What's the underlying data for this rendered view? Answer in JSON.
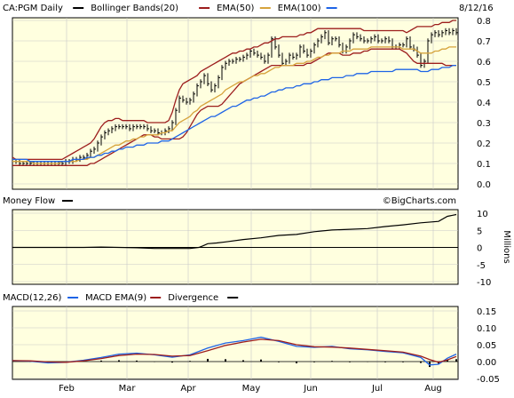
{
  "colors": {
    "panel_bg": "#ffffdf",
    "frame": "#000000",
    "grid": "#c8c8c8",
    "price": "#000000",
    "bollinger": "#9c1d1d",
    "ema50": "#d6a33c",
    "ema100": "#1e64e6",
    "money_flow": "#000000",
    "macd": "#1e64e6",
    "macd_ema": "#9c1d1d",
    "divergence": "#000000"
  },
  "chart_data": [
    {
      "type": "line",
      "name": "price",
      "legend": [
        {
          "label": "CA:PGM Daily",
          "swatch": "#000000"
        },
        {
          "label": "Bollinger Bands(20)",
          "swatch": "#9c1d1d"
        },
        {
          "label": "EMA(50)",
          "swatch": "#d6a33c"
        },
        {
          "label": "EMA(100)",
          "swatch": "#1e64e6"
        }
      ],
      "date_label": "8/12/16",
      "watermark": "©BigCharts.com",
      "yticks": [
        "0.8",
        "0.7",
        "0.6",
        "0.5",
        "0.4",
        "0.3",
        "0.2",
        "0.1",
        "0.0"
      ],
      "ylim": [
        0,
        0.8
      ],
      "x": [
        0,
        4,
        8,
        12,
        16,
        20,
        24,
        28,
        32,
        36,
        40,
        44,
        48,
        52,
        56,
        60,
        64,
        68,
        72,
        76,
        80,
        84,
        88,
        92,
        96,
        100,
        104,
        108,
        112,
        116,
        120,
        124,
        128,
        132,
        136,
        140,
        144,
        148,
        152,
        156,
        160,
        164,
        168,
        172,
        176,
        180,
        184,
        188,
        192,
        196,
        200,
        204,
        208,
        212,
        216,
        220,
        224,
        228,
        232,
        236,
        240,
        244,
        248,
        252,
        256,
        260,
        264,
        268,
        272,
        276,
        280,
        284,
        288,
        292,
        296,
        300,
        304,
        308,
        312,
        316,
        320,
        324,
        328,
        332,
        336,
        340,
        344,
        348,
        352,
        356,
        360,
        364,
        368,
        372,
        376,
        380,
        384,
        388,
        392,
        396,
        400,
        404,
        408,
        412,
        416,
        420,
        424,
        428,
        432,
        436,
        440,
        444,
        448,
        452,
        456,
        460,
        464,
        468,
        472,
        476,
        480,
        484,
        488,
        492,
        496,
        500
      ],
      "close": [
        0.11,
        0.11,
        0.1,
        0.1,
        0.1,
        0.1,
        0.1,
        0.1,
        0.1,
        0.1,
        0.1,
        0.1,
        0.1,
        0.1,
        0.1,
        0.11,
        0.11,
        0.12,
        0.12,
        0.13,
        0.13,
        0.14,
        0.16,
        0.17,
        0.2,
        0.23,
        0.25,
        0.26,
        0.27,
        0.28,
        0.28,
        0.28,
        0.28,
        0.27,
        0.28,
        0.28,
        0.28,
        0.28,
        0.27,
        0.26,
        0.26,
        0.25,
        0.25,
        0.26,
        0.27,
        0.3,
        0.36,
        0.42,
        0.41,
        0.4,
        0.41,
        0.44,
        0.48,
        0.5,
        0.53,
        0.49,
        0.46,
        0.48,
        0.52,
        0.57,
        0.59,
        0.6,
        0.6,
        0.61,
        0.61,
        0.62,
        0.63,
        0.65,
        0.64,
        0.63,
        0.62,
        0.6,
        0.63,
        0.71,
        0.67,
        0.63,
        0.59,
        0.6,
        0.63,
        0.62,
        0.63,
        0.67,
        0.65,
        0.63,
        0.65,
        0.68,
        0.7,
        0.72,
        0.74,
        0.69,
        0.71,
        0.71,
        0.68,
        0.65,
        0.67,
        0.7,
        0.73,
        0.72,
        0.71,
        0.7,
        0.7,
        0.71,
        0.72,
        0.7,
        0.7,
        0.71,
        0.7,
        0.67,
        0.67,
        0.68,
        0.68,
        0.71,
        0.67,
        0.66,
        0.63,
        0.58,
        0.6,
        0.7,
        0.73,
        0.74,
        0.73,
        0.74,
        0.75,
        0.74,
        0.75,
        0.74
      ],
      "bb_upper": [
        0.13,
        0.12,
        0.12,
        0.12,
        0.12,
        0.12,
        0.12,
        0.12,
        0.12,
        0.12,
        0.12,
        0.12,
        0.12,
        0.12,
        0.12,
        0.13,
        0.14,
        0.15,
        0.16,
        0.17,
        0.18,
        0.19,
        0.2,
        0.22,
        0.25,
        0.28,
        0.3,
        0.31,
        0.31,
        0.32,
        0.32,
        0.31,
        0.31,
        0.31,
        0.31,
        0.31,
        0.31,
        0.31,
        0.3,
        0.3,
        0.3,
        0.3,
        0.3,
        0.3,
        0.31,
        0.35,
        0.41,
        0.46,
        0.49,
        0.5,
        0.51,
        0.52,
        0.53,
        0.55,
        0.56,
        0.57,
        0.58,
        0.59,
        0.6,
        0.61,
        0.62,
        0.63,
        0.64,
        0.64,
        0.65,
        0.65,
        0.66,
        0.66,
        0.67,
        0.67,
        0.68,
        0.69,
        0.69,
        0.7,
        0.71,
        0.71,
        0.72,
        0.72,
        0.72,
        0.72,
        0.72,
        0.73,
        0.73,
        0.74,
        0.74,
        0.75,
        0.76,
        0.76,
        0.76,
        0.76,
        0.76,
        0.76,
        0.76,
        0.76,
        0.76,
        0.76,
        0.76,
        0.76,
        0.76,
        0.75,
        0.75,
        0.75,
        0.75,
        0.75,
        0.75,
        0.75,
        0.75,
        0.75,
        0.75,
        0.75,
        0.75,
        0.74,
        0.75,
        0.76,
        0.77,
        0.77,
        0.77,
        0.77,
        0.77,
        0.78,
        0.78,
        0.79,
        0.79,
        0.79,
        0.8,
        0.8
      ],
      "bb_lower": [
        0.09,
        0.09,
        0.09,
        0.09,
        0.09,
        0.09,
        0.09,
        0.09,
        0.09,
        0.09,
        0.09,
        0.09,
        0.09,
        0.09,
        0.09,
        0.09,
        0.09,
        0.09,
        0.09,
        0.09,
        0.09,
        0.09,
        0.1,
        0.1,
        0.11,
        0.12,
        0.13,
        0.14,
        0.15,
        0.16,
        0.17,
        0.18,
        0.19,
        0.2,
        0.21,
        0.22,
        0.23,
        0.24,
        0.24,
        0.24,
        0.23,
        0.23,
        0.22,
        0.22,
        0.22,
        0.22,
        0.22,
        0.22,
        0.23,
        0.25,
        0.28,
        0.31,
        0.34,
        0.36,
        0.37,
        0.38,
        0.38,
        0.38,
        0.38,
        0.39,
        0.41,
        0.43,
        0.45,
        0.47,
        0.49,
        0.5,
        0.51,
        0.52,
        0.53,
        0.54,
        0.55,
        0.56,
        0.57,
        0.58,
        0.58,
        0.58,
        0.58,
        0.58,
        0.58,
        0.58,
        0.58,
        0.58,
        0.58,
        0.59,
        0.59,
        0.6,
        0.61,
        0.62,
        0.63,
        0.64,
        0.64,
        0.64,
        0.64,
        0.63,
        0.63,
        0.63,
        0.64,
        0.64,
        0.64,
        0.65,
        0.65,
        0.66,
        0.66,
        0.66,
        0.66,
        0.66,
        0.66,
        0.66,
        0.66,
        0.66,
        0.65,
        0.64,
        0.62,
        0.6,
        0.59,
        0.59,
        0.59,
        0.59,
        0.59,
        0.59,
        0.59,
        0.59,
        0.58,
        0.58,
        0.58,
        0.58
      ],
      "ema50": [
        0.11,
        0.11,
        0.11,
        0.11,
        0.11,
        0.11,
        0.1,
        0.1,
        0.1,
        0.1,
        0.1,
        0.1,
        0.1,
        0.1,
        0.11,
        0.11,
        0.11,
        0.11,
        0.11,
        0.12,
        0.12,
        0.12,
        0.13,
        0.13,
        0.14,
        0.15,
        0.16,
        0.17,
        0.18,
        0.19,
        0.19,
        0.2,
        0.21,
        0.21,
        0.22,
        0.22,
        0.23,
        0.23,
        0.24,
        0.24,
        0.24,
        0.24,
        0.25,
        0.25,
        0.26,
        0.26,
        0.28,
        0.3,
        0.31,
        0.32,
        0.33,
        0.35,
        0.36,
        0.38,
        0.39,
        0.4,
        0.41,
        0.42,
        0.43,
        0.44,
        0.46,
        0.47,
        0.48,
        0.49,
        0.5,
        0.5,
        0.51,
        0.52,
        0.53,
        0.53,
        0.54,
        0.54,
        0.55,
        0.56,
        0.57,
        0.57,
        0.58,
        0.58,
        0.58,
        0.58,
        0.59,
        0.59,
        0.59,
        0.6,
        0.6,
        0.61,
        0.62,
        0.62,
        0.63,
        0.63,
        0.64,
        0.64,
        0.64,
        0.65,
        0.65,
        0.65,
        0.66,
        0.66,
        0.66,
        0.66,
        0.66,
        0.67,
        0.67,
        0.67,
        0.67,
        0.67,
        0.67,
        0.67,
        0.67,
        0.67,
        0.66,
        0.66,
        0.66,
        0.66,
        0.65,
        0.64,
        0.64,
        0.64,
        0.64,
        0.65,
        0.65,
        0.66,
        0.66,
        0.67,
        0.67,
        0.67
      ],
      "ema100": [
        0.12,
        0.12,
        0.12,
        0.12,
        0.12,
        0.11,
        0.11,
        0.11,
        0.11,
        0.11,
        0.11,
        0.11,
        0.11,
        0.11,
        0.11,
        0.11,
        0.11,
        0.12,
        0.12,
        0.12,
        0.12,
        0.13,
        0.13,
        0.13,
        0.14,
        0.14,
        0.15,
        0.15,
        0.16,
        0.16,
        0.17,
        0.17,
        0.18,
        0.18,
        0.18,
        0.19,
        0.19,
        0.19,
        0.2,
        0.2,
        0.2,
        0.2,
        0.21,
        0.21,
        0.21,
        0.22,
        0.23,
        0.24,
        0.25,
        0.26,
        0.27,
        0.28,
        0.29,
        0.3,
        0.31,
        0.32,
        0.33,
        0.33,
        0.34,
        0.35,
        0.36,
        0.37,
        0.38,
        0.38,
        0.39,
        0.4,
        0.41,
        0.41,
        0.42,
        0.42,
        0.43,
        0.43,
        0.44,
        0.45,
        0.45,
        0.46,
        0.46,
        0.47,
        0.47,
        0.47,
        0.48,
        0.48,
        0.49,
        0.49,
        0.49,
        0.5,
        0.5,
        0.51,
        0.51,
        0.51,
        0.52,
        0.52,
        0.52,
        0.52,
        0.53,
        0.53,
        0.53,
        0.54,
        0.54,
        0.54,
        0.54,
        0.55,
        0.55,
        0.55,
        0.55,
        0.55,
        0.55,
        0.55,
        0.56,
        0.56,
        0.56,
        0.56,
        0.56,
        0.56,
        0.56,
        0.55,
        0.55,
        0.55,
        0.56,
        0.56,
        0.56,
        0.57,
        0.57,
        0.57,
        0.58,
        0.58
      ]
    },
    {
      "type": "line",
      "name": "money-flow",
      "legend": [
        {
          "label": "Money Flow",
          "swatch": "#000000"
        }
      ],
      "ylabel": "Millions",
      "yticks": [
        "10",
        "5",
        "0",
        "-5",
        "-10"
      ],
      "ylim": [
        -10,
        10
      ],
      "x": [
        0,
        20,
        40,
        60,
        80,
        100,
        120,
        140,
        160,
        180,
        200,
        210,
        215,
        220,
        230,
        240,
        260,
        280,
        300,
        320,
        340,
        360,
        380,
        400,
        420,
        440,
        460,
        480,
        490,
        500
      ],
      "values": [
        0,
        0,
        0,
        0,
        0,
        0.1,
        0,
        -0.1,
        -0.3,
        -0.3,
        -0.3,
        0,
        0.5,
        1.1,
        1.3,
        1.6,
        2.3,
        2.8,
        3.5,
        3.8,
        4.6,
        5.1,
        5.3,
        5.5,
        6.1,
        6.6,
        7.2,
        7.6,
        9.1,
        9.6
      ]
    },
    {
      "type": "line",
      "name": "macd",
      "legend": [
        {
          "label": "MACD(12,26)",
          "swatch": "#1e64e6"
        },
        {
          "label": "MACD EMA(9)",
          "swatch": "#9c1d1d"
        },
        {
          "label": "Divergence",
          "swatch": "#000000"
        }
      ],
      "yticks": [
        "0.15",
        "0.10",
        "0.05",
        "0.00",
        "-0.05"
      ],
      "ylim": [
        -0.05,
        0.15
      ],
      "x": [
        0,
        20,
        40,
        60,
        80,
        100,
        120,
        140,
        160,
        180,
        200,
        220,
        240,
        260,
        280,
        300,
        320,
        340,
        360,
        380,
        400,
        420,
        440,
        460,
        470,
        480,
        490,
        500
      ],
      "macd": [
        0.003,
        0.001,
        -0.004,
        -0.002,
        0.004,
        0.012,
        0.022,
        0.025,
        0.02,
        0.013,
        0.02,
        0.04,
        0.055,
        0.062,
        0.072,
        0.06,
        0.045,
        0.042,
        0.045,
        0.038,
        0.035,
        0.03,
        0.026,
        0.012,
        -0.01,
        -0.008,
        0.01,
        0.022
      ],
      "macd_ema": [
        0.003,
        0.002,
        -0.001,
        -0.002,
        0.002,
        0.009,
        0.018,
        0.022,
        0.021,
        0.016,
        0.018,
        0.032,
        0.048,
        0.058,
        0.066,
        0.062,
        0.05,
        0.044,
        0.043,
        0.04,
        0.036,
        0.032,
        0.028,
        0.016,
        0.006,
        -0.002,
        0.005,
        0.015
      ],
      "divergence": [
        0,
        -0.001,
        -0.003,
        0,
        0.002,
        0.003,
        0.004,
        0.003,
        -0.001,
        -0.003,
        0.002,
        0.008,
        0.007,
        0.004,
        0.006,
        -0.002,
        -0.005,
        -0.002,
        0.002,
        -0.002,
        -0.001,
        -0.002,
        -0.002,
        -0.004,
        -0.016,
        -0.006,
        0.005,
        0.007
      ]
    }
  ],
  "xaxis": {
    "ticks": [
      "Feb",
      "Mar",
      "Apr",
      "May",
      "Jun",
      "Jul",
      "Aug"
    ],
    "tick_x": [
      75,
      143,
      212,
      283,
      350,
      425,
      488
    ]
  }
}
